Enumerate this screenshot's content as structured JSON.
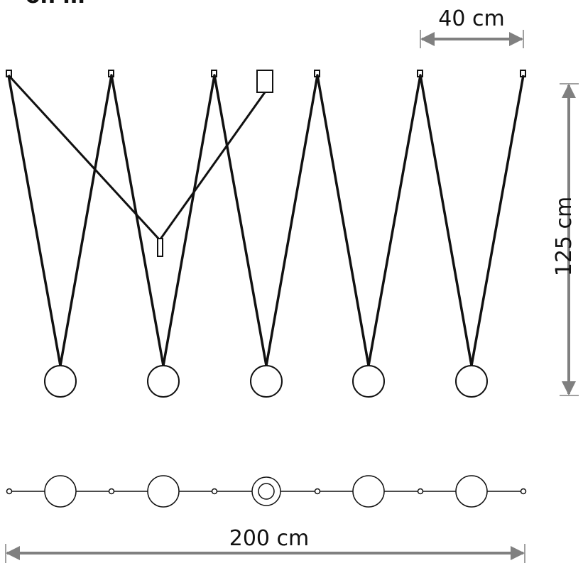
{
  "header": {
    "title_fragment": "on m"
  },
  "dimensions": {
    "width_top": "40 cm",
    "height": "125 cm",
    "total_width": "200 cm"
  },
  "colors": {
    "line": "#111111",
    "arrow": "#808080",
    "background": "#ffffff"
  },
  "counts": {
    "pendants": 5,
    "ceiling_hooks": 6
  }
}
